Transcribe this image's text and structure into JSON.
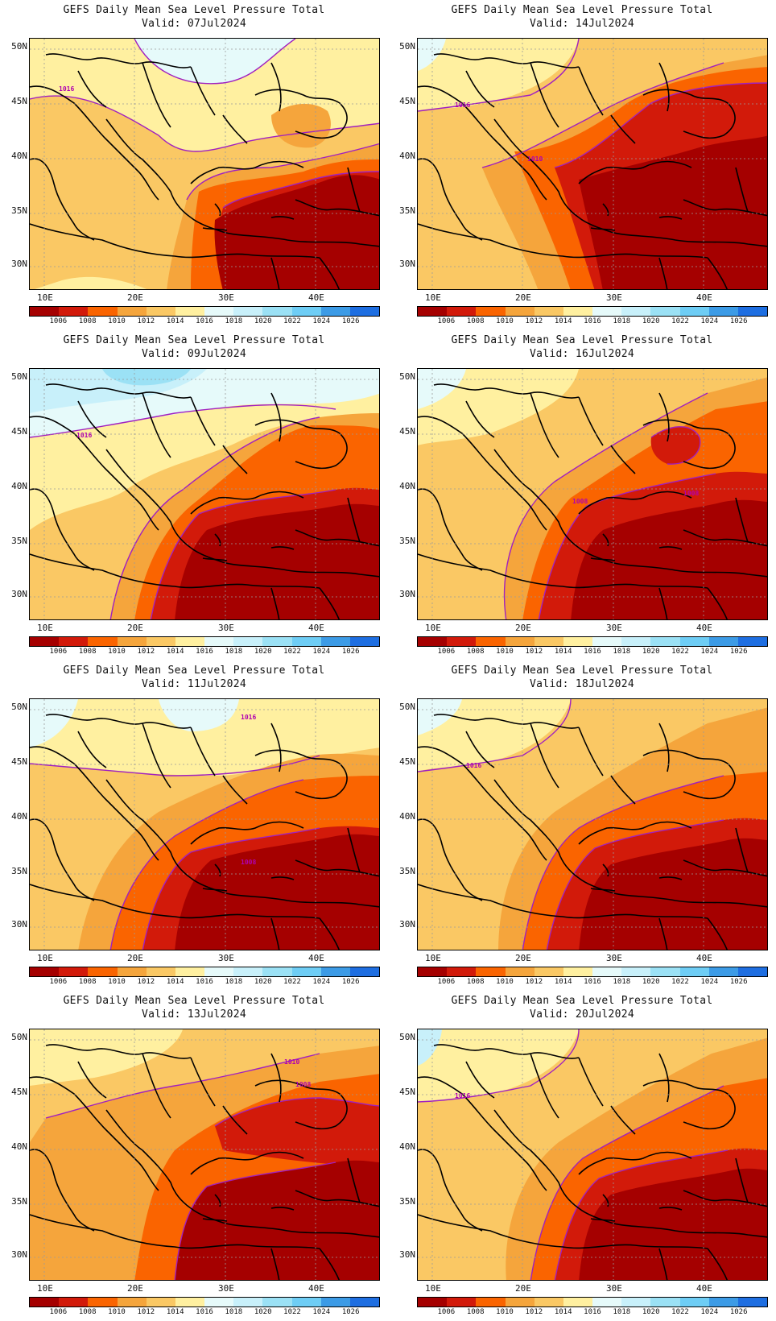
{
  "title": "GEFS Daily Mean Sea Level Pressure Total",
  "valid_prefix": "Valid:",
  "lat_labels": [
    "50N",
    "45N",
    "40N",
    "35N",
    "30N"
  ],
  "lon_labels": [
    "10E",
    "20E",
    "30E",
    "40E"
  ],
  "colorbar": {
    "labels": [
      "1006",
      "1008",
      "1010",
      "1012",
      "1014",
      "1016",
      "1018",
      "1020",
      "1022",
      "1024",
      "1026"
    ],
    "colors": [
      "#a50000",
      "#d21a0a",
      "#fa6400",
      "#f5a53c",
      "#fac864",
      "#fff0a0",
      "#e6fafa",
      "#c8f0fa",
      "#9be1f5",
      "#6ecdf5",
      "#3c9be6",
      "#1e6ee1"
    ]
  },
  "panels": [
    {
      "date": "07Jul2024",
      "contour_labels": [
        "1016"
      ]
    },
    {
      "date": "14Jul2024",
      "contour_labels": [
        "1016",
        "1010"
      ]
    },
    {
      "date": "09Jul2024",
      "contour_labels": [
        "1016"
      ]
    },
    {
      "date": "16Jul2024",
      "contour_labels": [
        "1008",
        "1008"
      ]
    },
    {
      "date": "11Jul2024",
      "contour_labels": [
        "1016",
        "1008"
      ]
    },
    {
      "date": "18Jul2024",
      "contour_labels": [
        "1016"
      ]
    },
    {
      "date": "13Jul2024",
      "contour_labels": [
        "1010",
        "1008"
      ]
    },
    {
      "date": "20Jul2024",
      "contour_labels": [
        "1016"
      ]
    }
  ]
}
